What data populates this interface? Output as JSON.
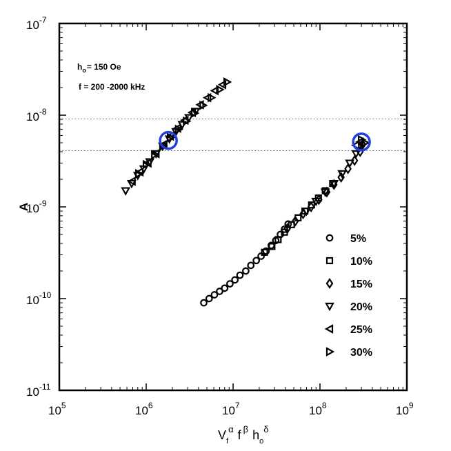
{
  "chart_data": {
    "type": "scatter",
    "title": "",
    "xlabel": "V_f^α f^β h_o^δ",
    "xlabel_parts": {
      "V": "V",
      "Vsub": "f",
      "Vsup": "α",
      "f": "f",
      "fsup": "β",
      "h": "h",
      "hsub": "o",
      "hsup": "δ"
    },
    "ylabel": "A",
    "x_scale": "log",
    "y_scale": "log",
    "xlim": [
      100000,
      1000000000
    ],
    "ylim": [
      1e-11,
      1e-07
    ],
    "x_ticks": [
      {
        "value": 100000,
        "base": "10",
        "exp": "5"
      },
      {
        "value": 1000000,
        "base": "10",
        "exp": "6"
      },
      {
        "value": 10000000,
        "base": "10",
        "exp": "7"
      },
      {
        "value": 100000000,
        "base": "10",
        "exp": "8"
      },
      {
        "value": 1000000000,
        "base": "10",
        "exp": "9"
      }
    ],
    "y_ticks": [
      {
        "value": 1e-11,
        "base": "10",
        "exp": "-11"
      },
      {
        "value": 1e-10,
        "base": "10",
        "exp": "-10"
      },
      {
        "value": 1e-09,
        "base": "10",
        "exp": "-9"
      },
      {
        "value": 1e-08,
        "base": "10",
        "exp": "-8"
      },
      {
        "value": 1e-07,
        "base": "10",
        "exp": "-7"
      }
    ],
    "grid": false,
    "reference_lines_y": [
      9.1e-09,
      4.1e-09
    ],
    "annotations": {
      "ho": {
        "h": "h",
        "sub": "o",
        "rest": "= 150 Oe"
      },
      "freq": "f = 200 -2000 kHz"
    },
    "highlight_circles": [
      {
        "x": 1800000,
        "y": 5.3e-09,
        "color": "#1f3fe0"
      },
      {
        "x": 300000000,
        "y": 5.1e-09,
        "color": "#1f3fe0"
      }
    ],
    "legend_position": "lower-right",
    "series": [
      {
        "name": "5%",
        "marker": "circle",
        "points": [
          [
            4600000.0,
            9e-11
          ],
          [
            5300000.0,
            1e-10
          ],
          [
            6100000.0,
            1.1e-10
          ],
          [
            7000000.0,
            1.2e-10
          ],
          [
            8000000.0,
            1.3e-10
          ],
          [
            9200000.0,
            1.45e-10
          ],
          [
            10500000.0,
            1.6e-10
          ],
          [
            12000000.0,
            1.8e-10
          ],
          [
            14000000.0,
            2e-10
          ],
          [
            16000000.0,
            2.3e-10
          ],
          [
            18500000.0,
            2.6e-10
          ],
          [
            21000000.0,
            2.9e-10
          ],
          [
            24000000.0,
            3.3e-10
          ],
          [
            27500000.0,
            3.8e-10
          ],
          [
            31000000.0,
            4.3e-10
          ],
          [
            35000000.0,
            5e-10
          ],
          [
            39000000.0,
            5.7e-10
          ],
          [
            43000000.0,
            6.5e-10
          ]
        ]
      },
      {
        "name": "10%",
        "marker": "square",
        "points": [
          [
            23000000.0,
            3.2e-10
          ],
          [
            28000000.0,
            3.7e-10
          ],
          [
            33000000.0,
            4.4e-10
          ],
          [
            39000000.0,
            5.3e-10
          ],
          [
            47000000.0,
            6.4e-10
          ],
          [
            56000000.0,
            7.6e-10
          ],
          [
            67000000.0,
            9e-10
          ],
          [
            80000000.0,
            1.05e-09
          ],
          [
            96000000.0,
            1.25e-09
          ],
          [
            115000000.0,
            1.5e-09
          ],
          [
            140000000.0,
            1.8e-09
          ]
        ]
      },
      {
        "name": "15%",
        "marker": "diamond",
        "points": [
          [
            42000000.0,
            5.8e-10
          ],
          [
            52000000.0,
            7e-10
          ],
          [
            64000000.0,
            8.4e-10
          ],
          [
            79000000.0,
            1e-09
          ],
          [
            97000000.0,
            1.2e-09
          ],
          [
            120000000.0,
            1.45e-09
          ],
          [
            145000000.0,
            1.75e-09
          ],
          [
            175000000.0,
            2.1e-09
          ],
          [
            210000000.0,
            2.6e-09
          ],
          [
            250000000.0,
            3.2e-09
          ],
          [
            290000000.0,
            4e-09
          ],
          [
            310000000.0,
            4.8e-09
          ]
        ]
      },
      {
        "name": "20%",
        "marker": "triangle-down",
        "points": [
          [
            70000000.0,
            9e-10
          ],
          [
            90000000.0,
            1.15e-09
          ],
          [
            115000000.0,
            1.45e-09
          ],
          [
            145000000.0,
            1.8e-09
          ],
          [
            180000000.0,
            2.3e-09
          ],
          [
            220000000.0,
            3e-09
          ],
          [
            260000000.0,
            3.8e-09
          ],
          [
            580000.0,
            1.5e-09
          ],
          [
            680000.0,
            1.8e-09
          ],
          [
            800000.0,
            2.2e-09
          ],
          [
            940000.0,
            2.6e-09
          ],
          [
            1100000.0,
            3.1e-09
          ],
          [
            1300000.0,
            3.8e-09
          ],
          [
            1550000.0,
            4.6e-09
          ],
          [
            1850000.0,
            5.5e-09
          ],
          [
            2200000.0,
            6.6e-09
          ],
          [
            2600000.0,
            7.9e-09
          ],
          [
            3100000.0,
            9.4e-09
          ],
          [
            3700000.0,
            1.1e-08
          ]
        ]
      },
      {
        "name": "25%",
        "marker": "triangle-left",
        "points": [
          [
            260000000.0,
            4.7e-09
          ],
          [
            290000000.0,
            5.1e-09
          ],
          [
            690000.0,
            1.9e-09
          ],
          [
            850000.0,
            2.4e-09
          ],
          [
            1050000.0,
            3e-09
          ],
          [
            1300000.0,
            3.8e-09
          ],
          [
            1600000.0,
            4.8e-09
          ],
          [
            1900000.0,
            5.9e-09
          ],
          [
            2300000.0,
            7.2e-09
          ],
          [
            2800000.0,
            8.8e-09
          ],
          [
            3400000.0,
            1.07e-08
          ],
          [
            4200000.0,
            1.3e-08
          ],
          [
            5100000.0,
            1.55e-08
          ],
          [
            6200000.0,
            1.85e-08
          ],
          [
            7600000.0,
            2.15e-08
          ]
        ]
      },
      {
        "name": "30%",
        "marker": "triangle-right",
        "points": [
          [
            300000000.0,
            5.4e-09
          ],
          [
            330000000.0,
            5e-09
          ],
          [
            820000.0,
            2.3e-09
          ],
          [
            1000000.0,
            2.9e-09
          ],
          [
            1250000.0,
            3.7e-09
          ],
          [
            1550000.0,
            4.6e-09
          ],
          [
            1900000.0,
            5.7e-09
          ],
          [
            2350000.0,
            7e-09
          ],
          [
            2900000.0,
            8.6e-09
          ],
          [
            3600000.0,
            1.05e-08
          ],
          [
            4500000.0,
            1.28e-08
          ],
          [
            5600000.0,
            1.55e-08
          ],
          [
            7000000.0,
            1.9e-08
          ],
          [
            8500000.0,
            2.3e-08
          ]
        ]
      }
    ]
  }
}
